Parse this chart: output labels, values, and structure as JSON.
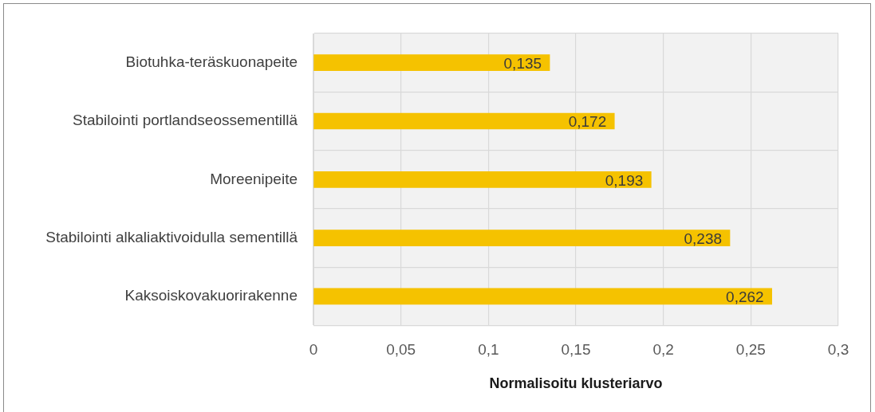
{
  "chart_data": {
    "type": "bar",
    "orientation": "horizontal",
    "categories": [
      "Biotuhka-teräskuonapeite",
      "Stabilointi portlandseossementillä",
      "Moreenipeite",
      "Stabilointi alkaliaktivoidulla sementillä",
      "Kaksoiskovakuorirakenne"
    ],
    "values": [
      0.135,
      0.172,
      0.193,
      0.238,
      0.262
    ],
    "value_labels": [
      "0,135",
      "0,172",
      "0,193",
      "0,238",
      "0,262"
    ],
    "color": "#f5c200",
    "xlabel": "Normalisoitu klusteriarvo",
    "xlim": [
      0,
      0.3
    ],
    "xticks": [
      0,
      {
        "value": 0.05,
        "label": "0,05"
      },
      {
        "value": 0.1,
        "label": "0,1"
      },
      {
        "value": 0.15,
        "label": "0,15"
      },
      {
        "value": 0.2,
        "label": "0,2"
      },
      {
        "value": 0.25,
        "label": "0,25"
      },
      {
        "value": 0.3,
        "label": "0,3"
      }
    ],
    "grid": true
  }
}
